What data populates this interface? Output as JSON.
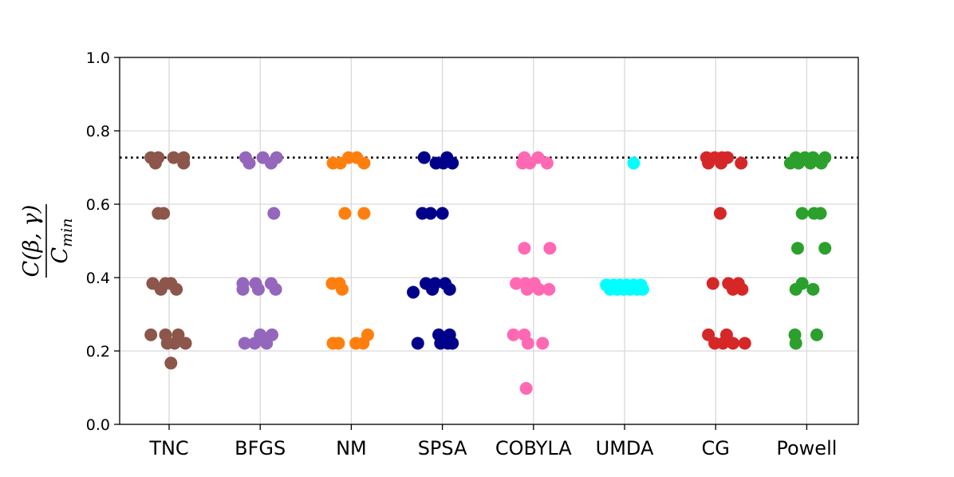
{
  "chart_data": {
    "type": "scatter",
    "title": "",
    "xlabel": "",
    "ylabel": {
      "numerator": "C(β, γ)",
      "denominator_base": "C",
      "denominator_sub": "min"
    },
    "categories": [
      "TNC",
      "BFGS",
      "NM",
      "SPSA",
      "COBYLA",
      "UMDA",
      "CG",
      "Powell"
    ],
    "ylim": [
      0.0,
      1.0
    ],
    "yticks": [
      "0.0",
      "0.2",
      "0.4",
      "0.6",
      "0.8",
      "1.0"
    ],
    "grid": true,
    "reference_line": {
      "value": 0.727,
      "style": "dotted",
      "color": "#000000"
    },
    "series": [
      {
        "category": "TNC",
        "color": "#8c564b",
        "points": [
          {
            "dx": -0.2,
            "y": 0.727
          },
          {
            "dx": -0.12,
            "y": 0.727
          },
          {
            "dx": 0.05,
            "y": 0.727
          },
          {
            "dx": 0.16,
            "y": 0.727
          },
          {
            "dx": -0.15,
            "y": 0.712
          },
          {
            "dx": 0.16,
            "y": 0.712
          },
          {
            "dx": -0.12,
            "y": 0.575
          },
          {
            "dx": -0.06,
            "y": 0.575
          },
          {
            "dx": -0.18,
            "y": 0.384
          },
          {
            "dx": -0.04,
            "y": 0.384
          },
          {
            "dx": 0.02,
            "y": 0.384
          },
          {
            "dx": -0.09,
            "y": 0.368
          },
          {
            "dx": 0.08,
            "y": 0.368
          },
          {
            "dx": -0.2,
            "y": 0.244
          },
          {
            "dx": -0.04,
            "y": 0.244
          },
          {
            "dx": 0.1,
            "y": 0.244
          },
          {
            "dx": -0.02,
            "y": 0.221
          },
          {
            "dx": 0.06,
            "y": 0.221
          },
          {
            "dx": 0.18,
            "y": 0.221
          },
          {
            "dx": 0.02,
            "y": 0.167
          }
        ]
      },
      {
        "category": "BFGS",
        "color": "#9467bd",
        "points": [
          {
            "dx": -0.16,
            "y": 0.727
          },
          {
            "dx": 0.03,
            "y": 0.727
          },
          {
            "dx": 0.18,
            "y": 0.727
          },
          {
            "dx": -0.12,
            "y": 0.712
          },
          {
            "dx": 0.12,
            "y": 0.712
          },
          {
            "dx": 0.15,
            "y": 0.575
          },
          {
            "dx": -0.19,
            "y": 0.384
          },
          {
            "dx": -0.05,
            "y": 0.384
          },
          {
            "dx": 0.12,
            "y": 0.384
          },
          {
            "dx": -0.19,
            "y": 0.368
          },
          {
            "dx": -0.02,
            "y": 0.368
          },
          {
            "dx": 0.17,
            "y": 0.368
          },
          {
            "dx": 0.0,
            "y": 0.244
          },
          {
            "dx": 0.13,
            "y": 0.244
          },
          {
            "dx": -0.17,
            "y": 0.221
          },
          {
            "dx": -0.06,
            "y": 0.221
          },
          {
            "dx": 0.07,
            "y": 0.221
          }
        ]
      },
      {
        "category": "NM",
        "color": "#ff7f0e",
        "points": [
          {
            "dx": -0.2,
            "y": 0.712
          },
          {
            "dx": -0.12,
            "y": 0.712
          },
          {
            "dx": 0.14,
            "y": 0.712
          },
          {
            "dx": -0.03,
            "y": 0.727
          },
          {
            "dx": 0.06,
            "y": 0.727
          },
          {
            "dx": -0.07,
            "y": 0.575
          },
          {
            "dx": 0.14,
            "y": 0.575
          },
          {
            "dx": -0.21,
            "y": 0.384
          },
          {
            "dx": -0.13,
            "y": 0.384
          },
          {
            "dx": -0.1,
            "y": 0.368
          },
          {
            "dx": -0.2,
            "y": 0.221
          },
          {
            "dx": -0.14,
            "y": 0.221
          },
          {
            "dx": 0.05,
            "y": 0.221
          },
          {
            "dx": 0.13,
            "y": 0.221
          },
          {
            "dx": 0.18,
            "y": 0.244
          }
        ]
      },
      {
        "category": "SPSA",
        "color": "#00008b",
        "points": [
          {
            "dx": -0.2,
            "y": 0.727
          },
          {
            "dx": 0.05,
            "y": 0.727
          },
          {
            "dx": -0.07,
            "y": 0.712
          },
          {
            "dx": 0.01,
            "y": 0.712
          },
          {
            "dx": 0.11,
            "y": 0.712
          },
          {
            "dx": -0.22,
            "y": 0.575
          },
          {
            "dx": -0.13,
            "y": 0.575
          },
          {
            "dx": 0.0,
            "y": 0.575
          },
          {
            "dx": -0.18,
            "y": 0.384
          },
          {
            "dx": -0.08,
            "y": 0.384
          },
          {
            "dx": 0.03,
            "y": 0.384
          },
          {
            "dx": -0.11,
            "y": 0.368
          },
          {
            "dx": 0.08,
            "y": 0.368
          },
          {
            "dx": -0.32,
            "y": 0.36
          },
          {
            "dx": -0.04,
            "y": 0.244
          },
          {
            "dx": 0.08,
            "y": 0.244
          },
          {
            "dx": -0.27,
            "y": 0.221
          },
          {
            "dx": -0.02,
            "y": 0.221
          },
          {
            "dx": 0.06,
            "y": 0.221
          },
          {
            "dx": 0.11,
            "y": 0.221
          }
        ]
      },
      {
        "category": "COBYLA",
        "color": "#ff69b4",
        "points": [
          {
            "dx": -0.1,
            "y": 0.727
          },
          {
            "dx": 0.05,
            "y": 0.727
          },
          {
            "dx": -0.12,
            "y": 0.712
          },
          {
            "dx": -0.04,
            "y": 0.712
          },
          {
            "dx": 0.15,
            "y": 0.712
          },
          {
            "dx": -0.1,
            "y": 0.48
          },
          {
            "dx": 0.18,
            "y": 0.48
          },
          {
            "dx": -0.19,
            "y": 0.384
          },
          {
            "dx": -0.09,
            "y": 0.384
          },
          {
            "dx": 0.01,
            "y": 0.384
          },
          {
            "dx": -0.07,
            "y": 0.368
          },
          {
            "dx": 0.06,
            "y": 0.368
          },
          {
            "dx": 0.17,
            "y": 0.368
          },
          {
            "dx": -0.22,
            "y": 0.244
          },
          {
            "dx": -0.1,
            "y": 0.244
          },
          {
            "dx": -0.06,
            "y": 0.221
          },
          {
            "dx": 0.1,
            "y": 0.221
          },
          {
            "dx": -0.08,
            "y": 0.098
          }
        ]
      },
      {
        "category": "UMDA",
        "color": "#00ffff",
        "points": [
          {
            "dx": 0.1,
            "y": 0.712
          },
          {
            "dx": -0.2,
            "y": 0.38
          },
          {
            "dx": -0.12,
            "y": 0.38
          },
          {
            "dx": -0.05,
            "y": 0.38
          },
          {
            "dx": 0.02,
            "y": 0.38
          },
          {
            "dx": 0.1,
            "y": 0.38
          },
          {
            "dx": 0.18,
            "y": 0.38
          },
          {
            "dx": -0.16,
            "y": 0.368
          },
          {
            "dx": -0.08,
            "y": 0.368
          },
          {
            "dx": -0.01,
            "y": 0.368
          },
          {
            "dx": 0.06,
            "y": 0.368
          },
          {
            "dx": 0.14,
            "y": 0.368
          },
          {
            "dx": 0.2,
            "y": 0.368
          }
        ]
      },
      {
        "category": "CG",
        "color": "#d62728",
        "points": [
          {
            "dx": -0.1,
            "y": 0.727
          },
          {
            "dx": -0.01,
            "y": 0.727
          },
          {
            "dx": 0.07,
            "y": 0.727
          },
          {
            "dx": 0.13,
            "y": 0.727
          },
          {
            "dx": -0.08,
            "y": 0.712
          },
          {
            "dx": 0.06,
            "y": 0.712
          },
          {
            "dx": 0.28,
            "y": 0.712
          },
          {
            "dx": 0.05,
            "y": 0.575
          },
          {
            "dx": -0.03,
            "y": 0.384
          },
          {
            "dx": 0.14,
            "y": 0.384
          },
          {
            "dx": 0.25,
            "y": 0.384
          },
          {
            "dx": 0.19,
            "y": 0.368
          },
          {
            "dx": 0.29,
            "y": 0.368
          },
          {
            "dx": -0.08,
            "y": 0.244
          },
          {
            "dx": 0.12,
            "y": 0.244
          },
          {
            "dx": -0.01,
            "y": 0.221
          },
          {
            "dx": 0.08,
            "y": 0.221
          },
          {
            "dx": 0.19,
            "y": 0.221
          },
          {
            "dx": 0.32,
            "y": 0.221
          }
        ]
      },
      {
        "category": "Powell",
        "color": "#2ca02c",
        "points": [
          {
            "dx": -0.12,
            "y": 0.727
          },
          {
            "dx": -0.02,
            "y": 0.727
          },
          {
            "dx": 0.07,
            "y": 0.727
          },
          {
            "dx": 0.2,
            "y": 0.727
          },
          {
            "dx": -0.18,
            "y": 0.712
          },
          {
            "dx": -0.09,
            "y": 0.712
          },
          {
            "dx": 0.04,
            "y": 0.712
          },
          {
            "dx": 0.16,
            "y": 0.712
          },
          {
            "dx": -0.05,
            "y": 0.575
          },
          {
            "dx": 0.08,
            "y": 0.575
          },
          {
            "dx": 0.15,
            "y": 0.575
          },
          {
            "dx": -0.1,
            "y": 0.48
          },
          {
            "dx": 0.2,
            "y": 0.48
          },
          {
            "dx": -0.05,
            "y": 0.384
          },
          {
            "dx": -0.12,
            "y": 0.368
          },
          {
            "dx": 0.07,
            "y": 0.368
          },
          {
            "dx": -0.13,
            "y": 0.244
          },
          {
            "dx": 0.11,
            "y": 0.244
          },
          {
            "dx": -0.12,
            "y": 0.221
          }
        ]
      }
    ]
  }
}
